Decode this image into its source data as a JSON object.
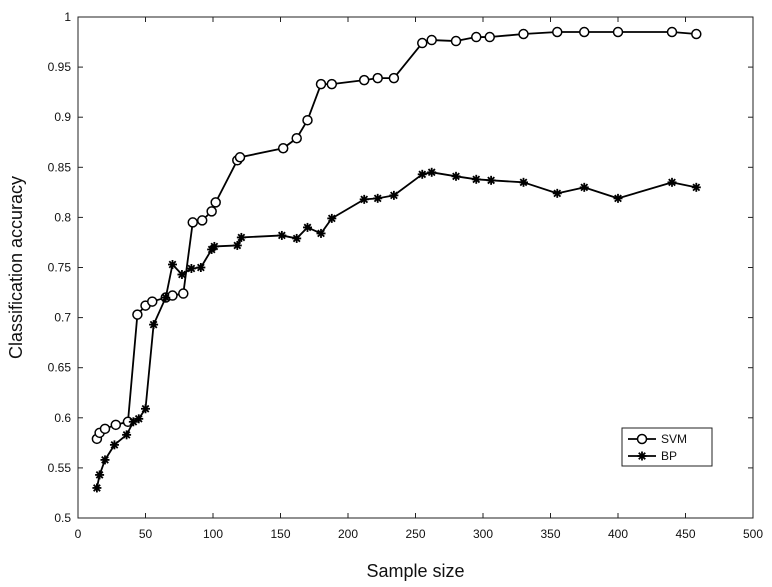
{
  "chart_data": {
    "type": "line",
    "title": "",
    "xlabel": "Sample size",
    "ylabel": "Classification  accuracy",
    "xlim": [
      0,
      500
    ],
    "ylim": [
      0.5,
      1
    ],
    "xticks": [
      0,
      50,
      100,
      150,
      200,
      250,
      300,
      350,
      400,
      450,
      500
    ],
    "yticks": [
      0.5,
      0.55,
      0.6,
      0.65,
      0.7,
      0.75,
      0.8,
      0.85,
      0.9,
      0.95,
      1
    ],
    "xtick_labels": [
      "0",
      "50",
      "100",
      "150",
      "200",
      "250",
      "300",
      "350",
      "400",
      "450",
      "500"
    ],
    "ytick_labels": [
      "0.5",
      "0.55",
      "0.6",
      "0.65",
      "0.7",
      "0.75",
      "0.8",
      "0.85",
      "0.9",
      "0.95",
      "1"
    ],
    "grid": false,
    "legend_position": "bottom-right",
    "series": [
      {
        "name": "SVM",
        "marker": "circle",
        "color": "#000000",
        "points": [
          [
            14,
            0.579
          ],
          [
            16,
            0.585
          ],
          [
            20,
            0.589
          ],
          [
            28,
            0.593
          ],
          [
            37,
            0.596
          ],
          [
            44,
            0.703
          ],
          [
            50,
            0.712
          ],
          [
            55,
            0.716
          ],
          [
            65,
            0.72
          ],
          [
            70,
            0.722
          ],
          [
            78,
            0.724
          ],
          [
            85,
            0.795
          ],
          [
            92,
            0.797
          ],
          [
            99,
            0.806
          ],
          [
            102,
            0.815
          ],
          [
            118,
            0.857
          ],
          [
            120,
            0.86
          ],
          [
            152,
            0.869
          ],
          [
            162,
            0.879
          ],
          [
            170,
            0.897
          ],
          [
            180,
            0.933
          ],
          [
            188,
            0.933
          ],
          [
            212,
            0.937
          ],
          [
            222,
            0.939
          ],
          [
            234,
            0.939
          ],
          [
            255,
            0.974
          ],
          [
            262,
            0.977
          ],
          [
            280,
            0.976
          ],
          [
            295,
            0.98
          ],
          [
            305,
            0.98
          ],
          [
            330,
            0.983
          ],
          [
            355,
            0.985
          ],
          [
            375,
            0.985
          ],
          [
            400,
            0.985
          ],
          [
            440,
            0.985
          ],
          [
            458,
            0.983
          ]
        ]
      },
      {
        "name": "BP",
        "marker": "asterisk",
        "color": "#000000",
        "points": [
          [
            14,
            0.53
          ],
          [
            16,
            0.543
          ],
          [
            20,
            0.558
          ],
          [
            27,
            0.573
          ],
          [
            36,
            0.583
          ],
          [
            41,
            0.596
          ],
          [
            45,
            0.599
          ],
          [
            50,
            0.609
          ],
          [
            56,
            0.693
          ],
          [
            65,
            0.72
          ],
          [
            70,
            0.753
          ],
          [
            77,
            0.743
          ],
          [
            84,
            0.749
          ],
          [
            91,
            0.75
          ],
          [
            99,
            0.768
          ],
          [
            101,
            0.771
          ],
          [
            118,
            0.772
          ],
          [
            121,
            0.78
          ],
          [
            151,
            0.782
          ],
          [
            162,
            0.779
          ],
          [
            170,
            0.79
          ],
          [
            180,
            0.784
          ],
          [
            188,
            0.799
          ],
          [
            212,
            0.818
          ],
          [
            222,
            0.819
          ],
          [
            234,
            0.822
          ],
          [
            255,
            0.843
          ],
          [
            262,
            0.845
          ],
          [
            280,
            0.841
          ],
          [
            295,
            0.838
          ],
          [
            306,
            0.837
          ],
          [
            330,
            0.835
          ],
          [
            355,
            0.824
          ],
          [
            375,
            0.83
          ],
          [
            400,
            0.819
          ],
          [
            440,
            0.835
          ],
          [
            458,
            0.83
          ]
        ]
      }
    ]
  }
}
